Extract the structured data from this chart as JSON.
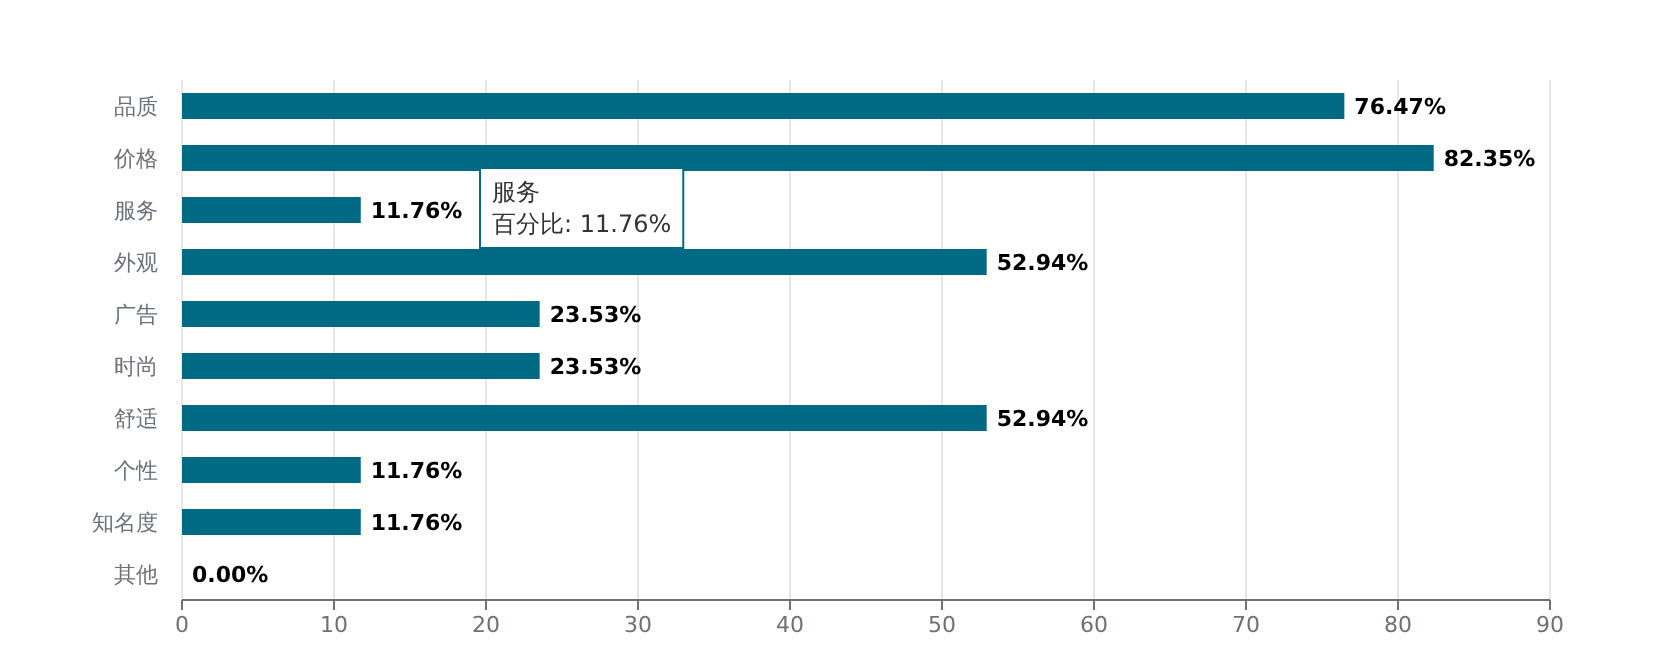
{
  "chart_data": {
    "type": "bar",
    "orientation": "horizontal",
    "categories": [
      "品质",
      "价格",
      "服务",
      "外观",
      "广告",
      "时尚",
      "舒适",
      "个性",
      "知名度",
      "其他"
    ],
    "values": [
      76.47,
      82.35,
      11.76,
      52.94,
      23.53,
      23.53,
      52.94,
      11.76,
      11.76,
      0
    ],
    "value_labels": [
      "76.47%",
      "82.35%",
      "11.76%",
      "52.94%",
      "23.53%",
      "23.53%",
      "52.94%",
      "11.76%",
      "11.76%",
      "0.00%"
    ],
    "color": "#006a85",
    "xlim": [
      0,
      90
    ],
    "xticks": [
      0,
      10,
      20,
      30,
      40,
      50,
      60,
      70,
      80,
      90
    ],
    "grid": "x",
    "annotations": [
      "服务",
      "百分比: 11.76%"
    ]
  }
}
